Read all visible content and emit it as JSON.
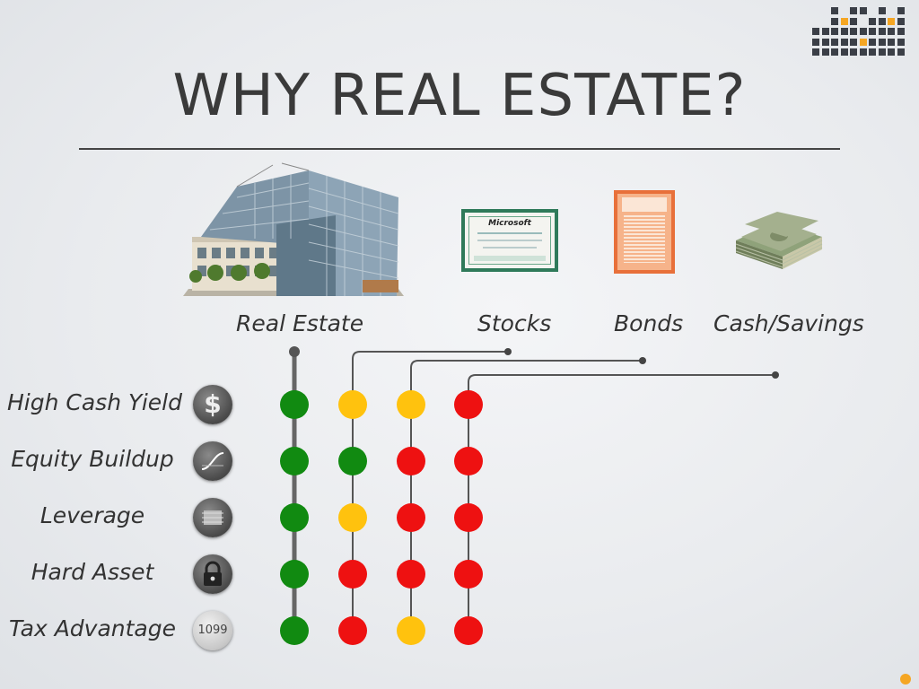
{
  "title": "WHY REAL ESTATE?",
  "columns": [
    {
      "name": "real-estate",
      "label": "Real Estate",
      "image": "office-building-photo"
    },
    {
      "name": "stocks",
      "label": "Stocks",
      "image": "stock-certificate-image"
    },
    {
      "name": "bonds",
      "label": "Bonds",
      "image": "bond-certificate-image"
    },
    {
      "name": "cash-savings",
      "label": "Cash/Savings",
      "image": "cash-stack-image"
    }
  ],
  "stock_certificate_text": "Microsoft",
  "rows": [
    {
      "label": "High Cash Yield",
      "icon": "dollar-icon",
      "icon_text": "$",
      "ratings": [
        "green",
        "yellow",
        "yellow",
        "red"
      ]
    },
    {
      "label": "Equity Buildup",
      "icon": "growth-curve-icon",
      "ratings": [
        "green",
        "green",
        "red",
        "red"
      ]
    },
    {
      "label": "Leverage",
      "icon": "chip-icon",
      "ratings": [
        "green",
        "yellow",
        "red",
        "red"
      ]
    },
    {
      "label": "Hard Asset",
      "icon": "lock-icon",
      "ratings": [
        "green",
        "red",
        "red",
        "red"
      ]
    },
    {
      "label": "Tax Advantage",
      "icon": "tax-form-icon",
      "icon_text": "1099",
      "ratings": [
        "green",
        "red",
        "yellow",
        "red"
      ]
    }
  ],
  "colors": {
    "green": "#118a11",
    "yellow": "#ffc20e",
    "red": "#ee1111",
    "accent": "#f5a623",
    "line": "#555555"
  }
}
